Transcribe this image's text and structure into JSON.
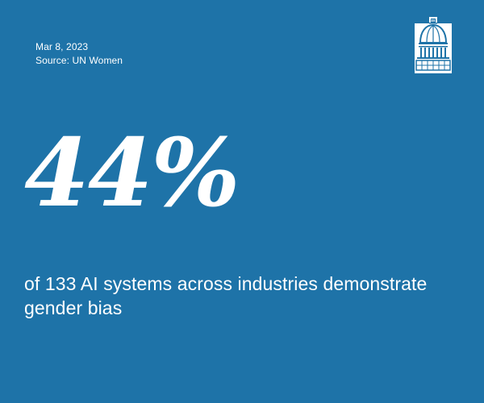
{
  "card": {
    "date": "Mar 8, 2023",
    "source": "Source: UN Women",
    "stat": "44%",
    "description": "of 133 AI systems across industries demonstrate gender bias"
  },
  "logo": {
    "icon": "capitol-dome-icon"
  },
  "colors": {
    "background": "#1e73a8",
    "text": "#ffffff"
  }
}
